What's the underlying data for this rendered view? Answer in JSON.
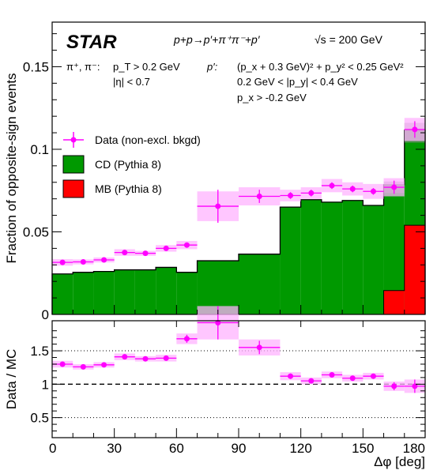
{
  "chart_data": [
    {
      "type": "bar",
      "title": "",
      "experiment": "STAR",
      "process": "p+p→p′+π⁺π⁻+p′",
      "energy": "√s = 200 GeV",
      "cuts": {
        "pion_label": "π⁺, π⁻:",
        "pion_lines": [
          "p_T > 0.2 GeV",
          "|η| < 0.7"
        ],
        "proton_label": "p′:",
        "proton_lines": [
          "(p_x + 0.3 GeV)² + p_y² < 0.25 GeV²",
          "0.2 GeV < |p_y| < 0.4 GeV",
          "p_x > -0.2 GeV"
        ]
      },
      "xlabel": "Δφ [deg]",
      "ylabel": "Fraction of opposite-sign events",
      "xlim": [
        0,
        180
      ],
      "ylim": [
        0,
        0.177
      ],
      "yticks": [
        0,
        0.05,
        0.1,
        0.15
      ],
      "ytick_labels": [
        "0",
        "0.05",
        "0.1",
        "0.15"
      ],
      "legend_position": "left",
      "colors": {
        "data": "#ff00ff",
        "data_band": "#ffb3ff",
        "cd": "#009900",
        "mb": "#ff0000",
        "total_band": "#888888"
      },
      "series": [
        {
          "name": "Data (non-excl. bkgd)",
          "kind": "points",
          "x": [
            5,
            15,
            25,
            35,
            45,
            55,
            65,
            80,
            100,
            115,
            125,
            135,
            145,
            155,
            165,
            175
          ],
          "xerr": [
            5,
            5,
            5,
            5,
            5,
            5,
            5,
            10,
            10,
            5,
            5,
            5,
            5,
            5,
            5,
            5
          ],
          "y": [
            0.0315,
            0.0318,
            0.033,
            0.0375,
            0.037,
            0.04,
            0.042,
            0.0655,
            0.0715,
            0.072,
            0.0735,
            0.078,
            0.076,
            0.0745,
            0.077,
            0.112
          ],
          "stat_err": [
            0.001,
            0.001,
            0.001,
            0.001,
            0.001,
            0.001,
            0.0015,
            0.01,
            0.004,
            0.002,
            0.002,
            0.002,
            0.002,
            0.002,
            0.004,
            0.005
          ],
          "sys_err": [
            0.002,
            0.0015,
            0.0015,
            0.002,
            0.0015,
            0.002,
            0.0025,
            0.009,
            0.0055,
            0.0035,
            0.0035,
            0.004,
            0.004,
            0.0045,
            0.0055,
            0.007
          ]
        },
        {
          "name": "CD (Pythia 8)",
          "kind": "histogram",
          "edges": [
            0,
            10,
            20,
            30,
            40,
            50,
            60,
            70,
            90,
            110,
            120,
            130,
            140,
            150,
            160,
            170,
            180
          ],
          "values": [
            0.0245,
            0.0255,
            0.026,
            0.027,
            0.027,
            0.0285,
            0.0255,
            0.0325,
            0.0365,
            0.065,
            0.0695,
            0.068,
            0.069,
            0.066,
            0.0785,
            0.1115
          ]
        },
        {
          "name": "MB (Pythia 8)",
          "kind": "histogram",
          "edges": [
            160,
            170,
            180
          ],
          "values": [
            0.0145,
            0.054
          ]
        }
      ],
      "total_mc_band": [
        {
          "x0": 160,
          "x1": 170,
          "y0": 0.0735,
          "y1": 0.0805
        },
        {
          "x0": 170,
          "x1": 180,
          "y0": 0.104,
          "y1": 0.116
        }
      ]
    },
    {
      "type": "scatter",
      "title": "",
      "xlabel": "Δφ [deg]",
      "ylabel": "Data / MC",
      "xlim": [
        0,
        180
      ],
      "ylim": [
        0.2,
        1.95
      ],
      "xticks": [
        0,
        30,
        60,
        90,
        120,
        150,
        180
      ],
      "xtick_labels": [
        "0",
        "30",
        "60",
        "90",
        "120",
        "150",
        "180"
      ],
      "yticks": [
        0.5,
        1,
        1.5
      ],
      "ytick_labels": [
        "0.5",
        "1",
        "1.5"
      ],
      "reference_lines": [
        0.5,
        1,
        1.5
      ],
      "series": [
        {
          "name": "",
          "x": [
            5,
            15,
            25,
            35,
            45,
            55,
            65,
            80,
            100,
            115,
            125,
            135,
            145,
            155,
            165,
            175
          ],
          "xerr": [
            5,
            5,
            5,
            5,
            5,
            5,
            5,
            10,
            10,
            5,
            5,
            5,
            5,
            5,
            5,
            5
          ],
          "y": [
            1.3,
            1.26,
            1.29,
            1.41,
            1.38,
            1.39,
            1.68,
            1.92,
            1.55,
            1.12,
            1.05,
            1.14,
            1.09,
            1.12,
            0.97,
            0.97
          ],
          "stat_err": [
            0.02,
            0.02,
            0.02,
            0.03,
            0.02,
            0.03,
            0.06,
            0.25,
            0.1,
            0.04,
            0.03,
            0.03,
            0.03,
            0.03,
            0.06,
            0.1
          ],
          "sys_err": [
            0.05,
            0.04,
            0.04,
            0.05,
            0.04,
            0.05,
            0.08,
            0.25,
            0.12,
            0.06,
            0.05,
            0.05,
            0.05,
            0.05,
            0.07,
            0.1
          ]
        }
      ]
    }
  ]
}
